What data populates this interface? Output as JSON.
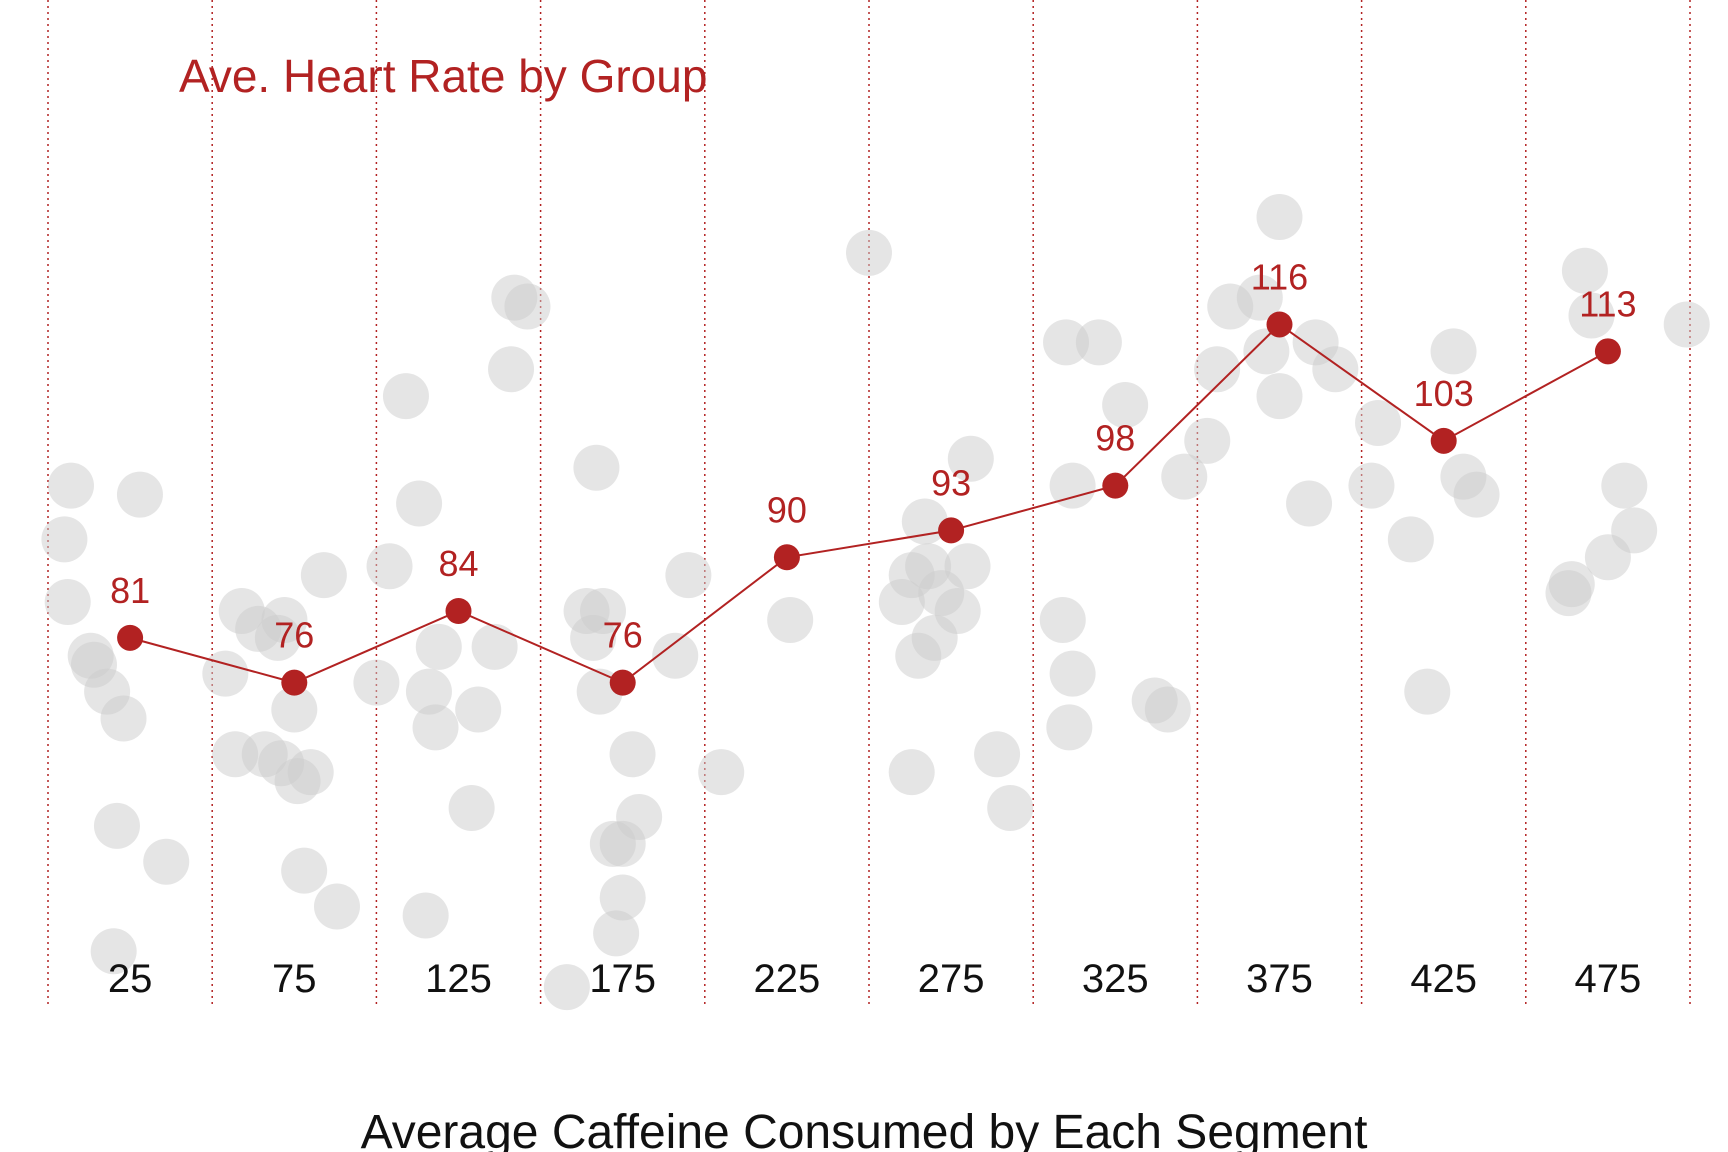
{
  "chart_data": {
    "type": "scatter",
    "title": "Ave. Heart Rate by Group",
    "xlabel": "Average Caffeine Consumed by Each Segment",
    "ylabel": "",
    "categories": [
      "25",
      "75",
      "125",
      "175",
      "225",
      "275",
      "325",
      "375",
      "425",
      "475"
    ],
    "group_boundaries": [
      0,
      50,
      100,
      150,
      200,
      250,
      300,
      350,
      400,
      450,
      500
    ],
    "xlim": [
      0,
      500
    ],
    "ylim": [
      40,
      150
    ],
    "grid": false,
    "legend": "none",
    "colors": {
      "accent": "#b22222",
      "points": "#cccccc"
    },
    "series": [
      {
        "kind": "line_markers",
        "x": [
          25,
          75,
          125,
          175,
          225,
          275,
          325,
          375,
          425,
          475
        ],
        "values": [
          81,
          76,
          84,
          76,
          90,
          93,
          98,
          116,
          103,
          113
        ],
        "labels": [
          "81",
          "76",
          "84",
          "76",
          "90",
          "93",
          "98",
          "116",
          "103",
          "113"
        ]
      },
      {
        "kind": "scatter",
        "x": [
          7,
          5,
          6,
          13,
          14,
          18,
          23,
          21,
          36,
          20,
          28,
          59,
          54,
          57,
          66,
          71,
          76,
          78,
          88,
          84,
          72,
          64,
          70,
          80,
          75,
          109,
          113,
          119,
          100,
          118,
          104,
          129,
          116,
          136,
          131,
          115,
          141,
          142,
          146,
          166,
          173,
          175,
          180,
          169,
          178,
          164,
          158,
          175,
          172,
          195,
          191,
          167,
          168,
          205,
          226,
          250,
          267,
          263,
          281,
          260,
          270,
          268,
          265,
          263,
          280,
          272,
          277,
          289,
          293,
          310,
          320,
          328,
          312,
          337,
          341,
          311,
          312,
          309,
          346,
          360,
          356,
          353,
          386,
          371,
          369,
          384,
          375,
          392,
          375,
          403,
          405,
          415,
          420,
          428,
          435,
          431,
          468,
          470,
          480,
          483,
          475,
          463,
          464,
          499
        ]
      },
      {
        "kind": "scatter_y",
        "values": [
          98,
          92,
          85,
          79,
          78,
          75,
          72,
          60,
          56,
          46,
          97,
          84,
          77,
          68,
          68,
          67,
          65,
          55,
          51,
          88,
          83,
          82,
          81,
          66,
          73,
          108,
          96,
          80,
          76,
          71,
          89,
          62,
          75,
          80,
          73,
          50,
          111,
          119,
          118,
          81,
          48,
          52,
          61,
          84,
          68,
          84,
          42,
          58,
          58,
          88,
          79,
          100,
          75,
          66,
          83,
          124,
          94,
          88,
          101,
          85,
          81,
          89,
          79,
          66,
          89,
          86,
          84,
          68,
          62,
          114,
          114,
          107,
          77,
          74,
          73,
          71,
          98,
          83,
          99,
          118,
          111,
          103,
          114,
          113,
          119,
          96,
          108,
          111,
          128,
          98,
          105,
          92,
          75,
          113,
          97,
          99,
          122,
          117,
          98,
          93,
          90,
          86,
          87,
          116
        ]
      }
    ]
  }
}
